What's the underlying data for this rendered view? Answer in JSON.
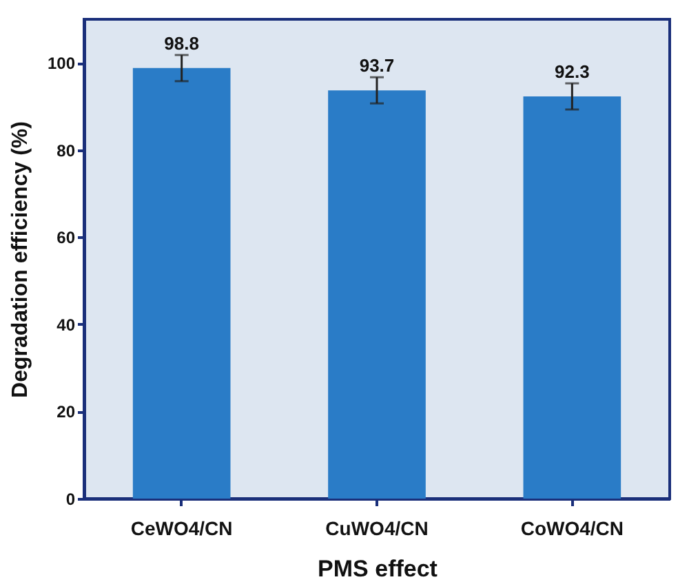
{
  "chart_data": {
    "type": "bar",
    "xlabel": "PMS effect",
    "ylabel": "Degradation efficiency (%)",
    "categories": [
      "CeWO4/CN",
      "CuWO4/CN",
      "CoWO4/CN"
    ],
    "values": [
      98.8,
      93.7,
      92.3
    ],
    "errors": [
      3,
      3,
      3
    ],
    "color": "#2a7cc7",
    "ylim": [
      0,
      110
    ],
    "yticks": [
      0,
      20,
      40,
      60,
      80,
      100
    ],
    "data_labels": true,
    "grid": false
  }
}
